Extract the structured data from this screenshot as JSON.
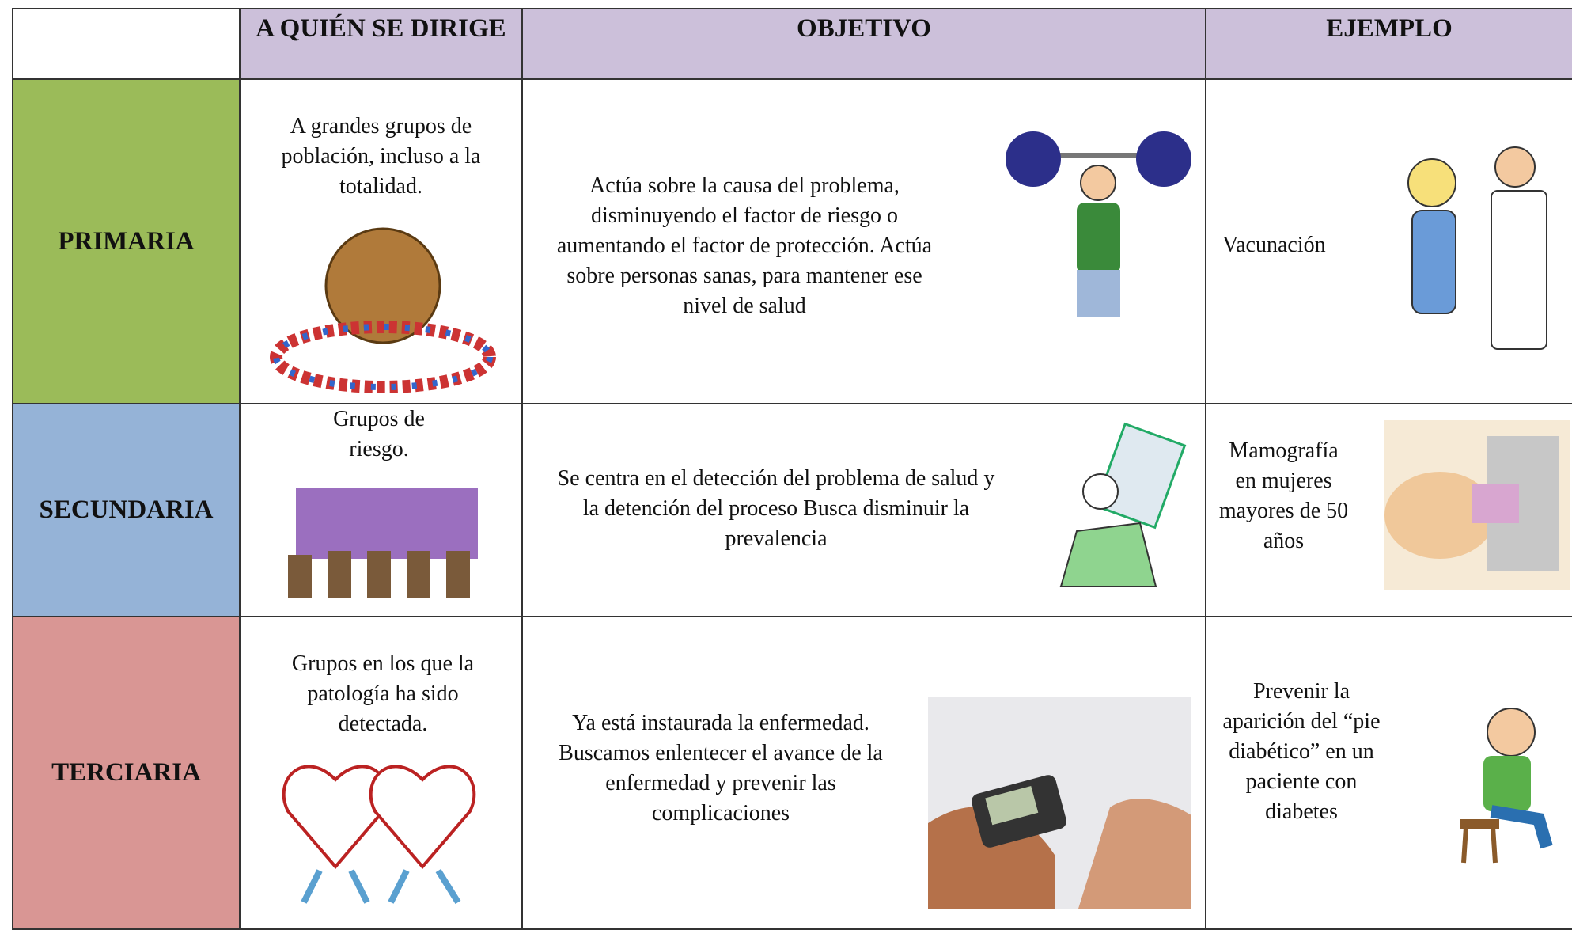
{
  "table": {
    "header": [
      "A QUIÉN SE DIRIGE",
      "OBJETIVO",
      "EJEMPLO"
    ],
    "rows": [
      {
        "level": "PRIMARIA",
        "target": "A grandes grupos de población, incluso a la totalidad.",
        "objective": "Actúa sobre la causa del problema, disminuyendo el factor de riesgo o aumentando el factor de protección. Actúa sobre personas sanas, para mantener ese nivel de salud",
        "example": "Vacunación"
      },
      {
        "level": "SECUNDARIA",
        "target": "Grupos de riesgo.",
        "objective": "Se centra en el detección del problema de salud y la detención del proceso Busca disminuir la prevalencia",
        "example": "Mamografía en mujeres mayores de 50 años"
      },
      {
        "level": "TERCIARIA",
        "target": "Grupos en los que la patología ha sido detectada.",
        "objective": "Ya está instaurada la enfermedad. Buscamos enlentecer el avance de la enfermedad y prevenir las complicaciones",
        "example": "Prevenir la aparición del “pie diabético” en un paciente con diabetes"
      }
    ]
  }
}
